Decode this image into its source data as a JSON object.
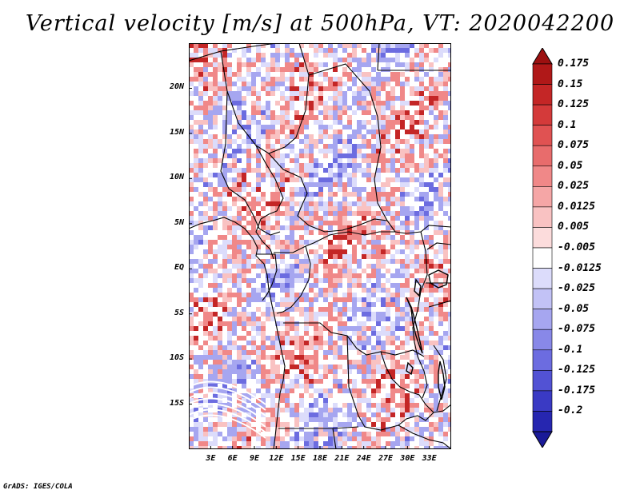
{
  "title": "Vertical velocity [m/s] at 500hPa, VT: 2020042200",
  "credit": "GrADS: IGES/COLA",
  "map": {
    "lat_range": [
      -20,
      25
    ],
    "lon_range": [
      0,
      36
    ],
    "lat_ticks": [
      {
        "value": 20,
        "label": "20N"
      },
      {
        "value": 15,
        "label": "15N"
      },
      {
        "value": 10,
        "label": "10N"
      },
      {
        "value": 5,
        "label": "5N"
      },
      {
        "value": 0,
        "label": "EQ"
      },
      {
        "value": -5,
        "label": "5S"
      },
      {
        "value": -10,
        "label": "10S"
      },
      {
        "value": -15,
        "label": "15S"
      }
    ],
    "lon_ticks": [
      {
        "value": 3,
        "label": "3E"
      },
      {
        "value": 6,
        "label": "6E"
      },
      {
        "value": 9,
        "label": "9E"
      },
      {
        "value": 12,
        "label": "12E"
      },
      {
        "value": 15,
        "label": "15E"
      },
      {
        "value": 18,
        "label": "18E"
      },
      {
        "value": 21,
        "label": "21E"
      },
      {
        "value": 24,
        "label": "24E"
      },
      {
        "value": 27,
        "label": "27E"
      },
      {
        "value": 30,
        "label": "30E"
      },
      {
        "value": 33,
        "label": "33E"
      }
    ]
  },
  "colorbar": {
    "levels": [
      {
        "label": "0.175",
        "color": "#b01818"
      },
      {
        "label": "0.15",
        "color": "#c42626"
      },
      {
        "label": "0.125",
        "color": "#d43a3a"
      },
      {
        "label": "0.1",
        "color": "#e05252"
      },
      {
        "label": "0.075",
        "color": "#e86c6c"
      },
      {
        "label": "0.05",
        "color": "#f08888"
      },
      {
        "label": "0.025",
        "color": "#f5a6a6"
      },
      {
        "label": "0.0125",
        "color": "#f9c2c2"
      },
      {
        "label": "0.005",
        "color": "#fcdcdc"
      },
      {
        "label": "-0.005",
        "color": "#ffffff"
      },
      {
        "label": "-0.0125",
        "color": "#dcdcfb"
      },
      {
        "label": "-0.025",
        "color": "#c2c2f6"
      },
      {
        "label": "-0.05",
        "color": "#a6a6f0"
      },
      {
        "label": "-0.075",
        "color": "#8888e8"
      },
      {
        "label": "-0.1",
        "color": "#6c6ce0"
      },
      {
        "label": "-0.125",
        "color": "#5252d4"
      },
      {
        "label": "-0.175",
        "color": "#3a3ac4"
      },
      {
        "label": "-0.2",
        "color": "#2626b0"
      }
    ],
    "top_cap_color": "#9c1010",
    "bottom_cap_color": "#1a1a98"
  },
  "field_colors": {
    "background": "#ffffff",
    "strong_rise": "#c42626",
    "rise": "#f08888",
    "weak_rise": "#f9c2c2",
    "weak_sink": "#dcdcfb",
    "sink": "#a6a6f0",
    "strong_sink": "#6c6ce0"
  }
}
